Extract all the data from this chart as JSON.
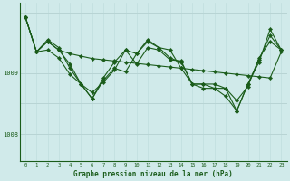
{
  "background_color": "#d0eaea",
  "plot_bg_color": "#d0eaea",
  "grid_color_v": "#c0dede",
  "grid_color_h": "#b8d4d4",
  "line_color": "#1a5c1a",
  "xlabel": "Graphe pression niveau de la mer (hPa)",
  "ylabel_ticks": [
    1008,
    1009
  ],
  "xlim": [
    -0.5,
    23.5
  ],
  "ylim": [
    1007.55,
    1010.15
  ],
  "x": [
    0,
    1,
    2,
    3,
    4,
    5,
    6,
    7,
    8,
    9,
    10,
    11,
    12,
    13,
    14,
    15,
    16,
    17,
    18,
    19,
    20,
    21,
    22,
    23
  ],
  "series1": [
    1009.92,
    1009.35,
    1009.52,
    1009.38,
    1009.32,
    1009.28,
    1009.24,
    1009.22,
    1009.2,
    1009.18,
    1009.16,
    1009.14,
    1009.12,
    1009.1,
    1009.08,
    1009.06,
    1009.04,
    1009.02,
    1009.0,
    1008.98,
    1008.96,
    1008.94,
    1008.92,
    1009.35
  ],
  "series2": [
    1009.92,
    1009.35,
    1009.52,
    1009.38,
    1009.15,
    1008.82,
    1008.68,
    1008.85,
    1009.05,
    1009.38,
    1009.15,
    1009.42,
    1009.38,
    1009.22,
    1009.2,
    1008.82,
    1008.82,
    1008.82,
    1008.75,
    1008.55,
    1008.78,
    1009.25,
    1009.52,
    1009.38
  ],
  "series3": [
    1009.92,
    1009.35,
    1009.55,
    1009.42,
    1009.08,
    1008.82,
    1008.58,
    1008.88,
    1009.08,
    1009.02,
    1009.32,
    1009.55,
    1009.42,
    1009.38,
    1009.08,
    1008.82,
    1008.75,
    1008.75,
    1008.62,
    1008.38,
    1008.82,
    1009.22,
    1009.62,
    1009.38
  ],
  "series4": [
    1009.92,
    1009.35,
    1009.38,
    1009.25,
    1008.98,
    1008.82,
    1008.58,
    1008.92,
    1009.18,
    1009.38,
    1009.32,
    1009.52,
    1009.42,
    1009.25,
    1009.18,
    1008.82,
    1008.82,
    1008.75,
    1008.75,
    1008.38,
    1008.82,
    1009.18,
    1009.72,
    1009.38
  ]
}
